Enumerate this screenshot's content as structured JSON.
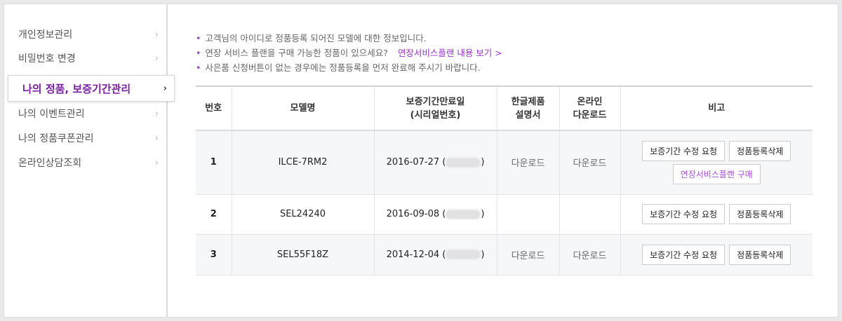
{
  "sidebar": {
    "items": [
      {
        "label": "개인정보관리",
        "active": false
      },
      {
        "label": "비밀번호 변경",
        "active": false
      },
      {
        "label": "나의 정품, 보증기간관리",
        "active": true
      },
      {
        "label": "나의 이벤트관리",
        "active": false
      },
      {
        "label": "나의 정품쿠폰관리",
        "active": false
      },
      {
        "label": "온라인상담조회",
        "active": false
      }
    ],
    "chevron": "›"
  },
  "notes": {
    "line1": "고객님의 아이디로 정품등록 되어진 모델에 대한 정보입니다.",
    "line2": "연장 서비스 플랜을 구매 가능한 정품이 있으세요?",
    "line2_link": "연장서비스플랜 내용 보기 >",
    "line3": "사은품 신청버튼이 없는 경우에는 정품등록을 먼저 완료해 주시기 바랍니다.",
    "bullet": "•"
  },
  "table": {
    "headers": {
      "no": "번호",
      "model": "모델명",
      "warranty1": "보증기간만료일",
      "warranty2": "(시리얼번호)",
      "manual1": "한글제품",
      "manual2": "설명서",
      "online1": "온라인",
      "online2": "다운로드",
      "note": "비고"
    },
    "rows": [
      {
        "no": "1",
        "model": "ILCE-7RM2",
        "date": "2016-07-27 (",
        "close": ")",
        "manual": "다운로드",
        "online": "다운로드",
        "btn_edit": "보증기간 수정 요청",
        "btn_delete": "정품등록삭제",
        "btn_plan": "연장서비스플랜 구매"
      },
      {
        "no": "2",
        "model": "SEL24240",
        "date": "2016-09-08 (",
        "close": ")",
        "manual": "",
        "online": "",
        "btn_edit": "보증기간 수정 요청",
        "btn_delete": "정품등록삭제"
      },
      {
        "no": "3",
        "model": "SEL55F18Z",
        "date": "2014-12-04 (",
        "close": ")",
        "manual": "다운로드",
        "online": "다운로드",
        "btn_edit": "보증기간 수정 요청",
        "btn_delete": "정품등록삭제"
      }
    ]
  },
  "colors": {
    "accent": "#7b1fa2",
    "link": "#9b2fd0"
  }
}
